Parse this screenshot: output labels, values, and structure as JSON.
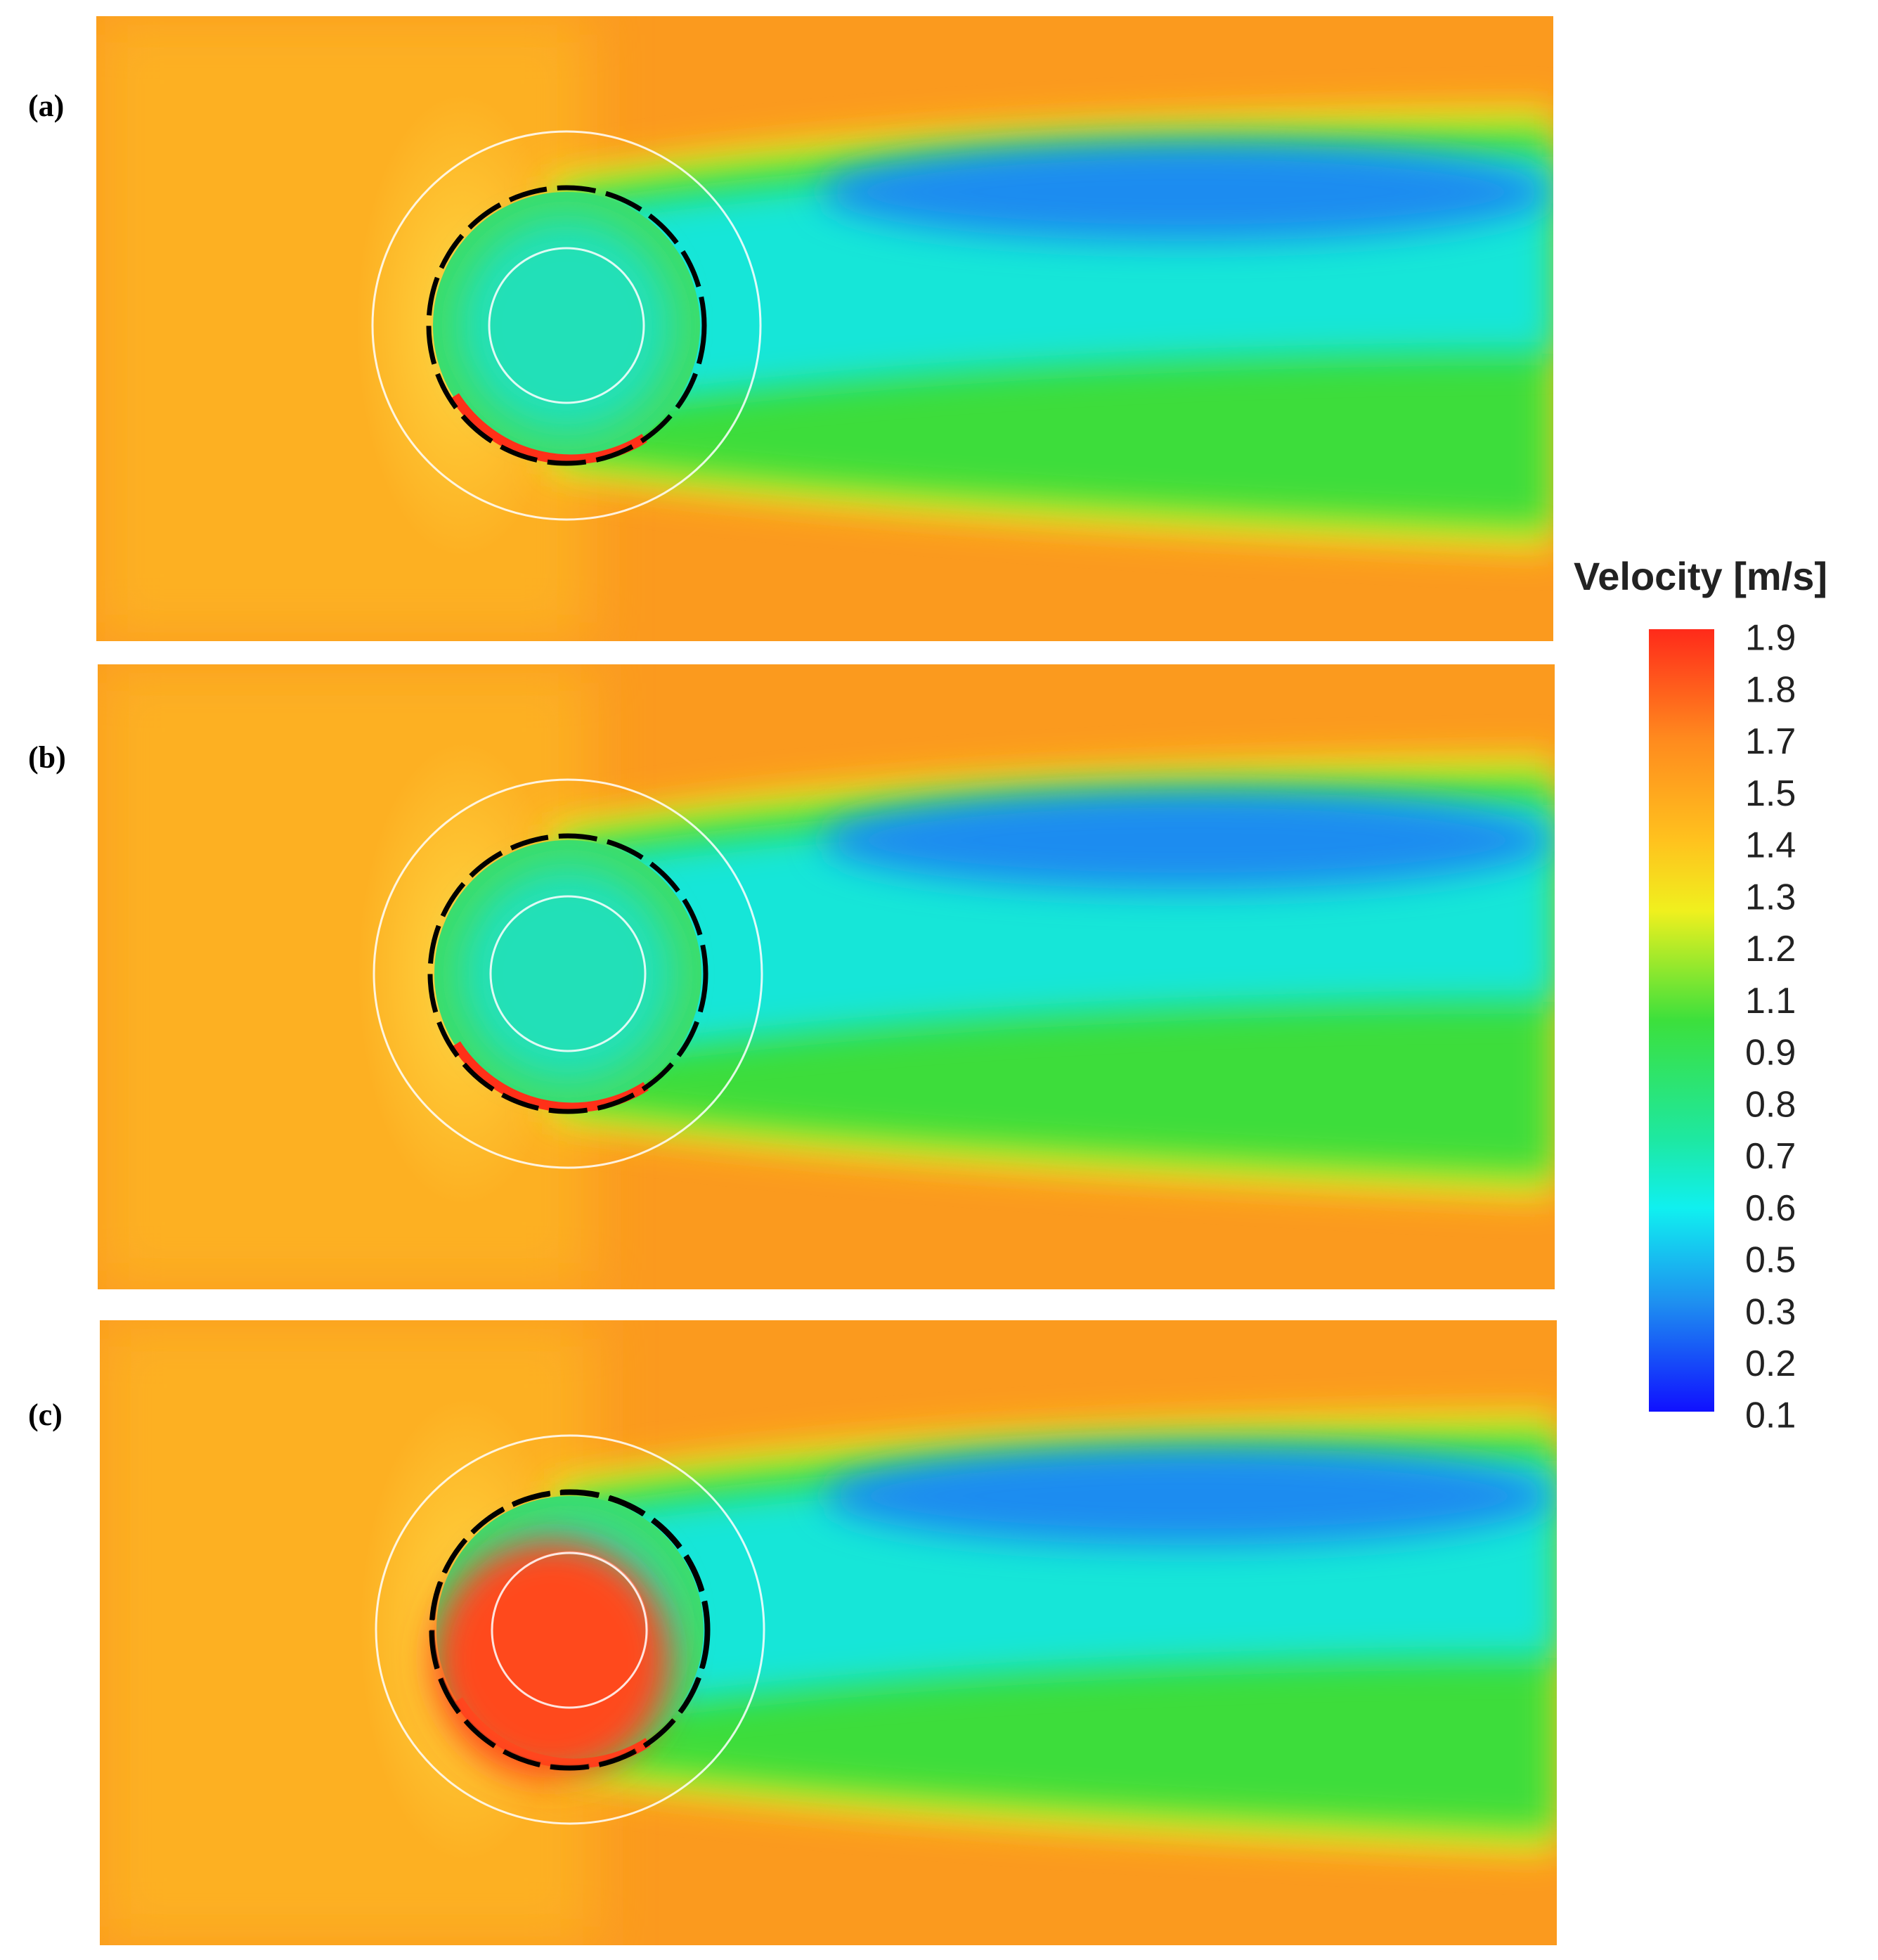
{
  "panels": [
    {
      "label": "(a)"
    },
    {
      "label": "(b)"
    },
    {
      "label": "(c)"
    }
  ],
  "colorbar": {
    "title": "Velocity [m/s]",
    "labels": [
      "1.9",
      "1.8",
      "1.7",
      "1.5",
      "1.4",
      "1.3",
      "1.2",
      "1.1",
      "0.9",
      "0.8",
      "0.7",
      "0.6",
      "0.5",
      "0.3",
      "0.2",
      "0.1"
    ]
  }
}
